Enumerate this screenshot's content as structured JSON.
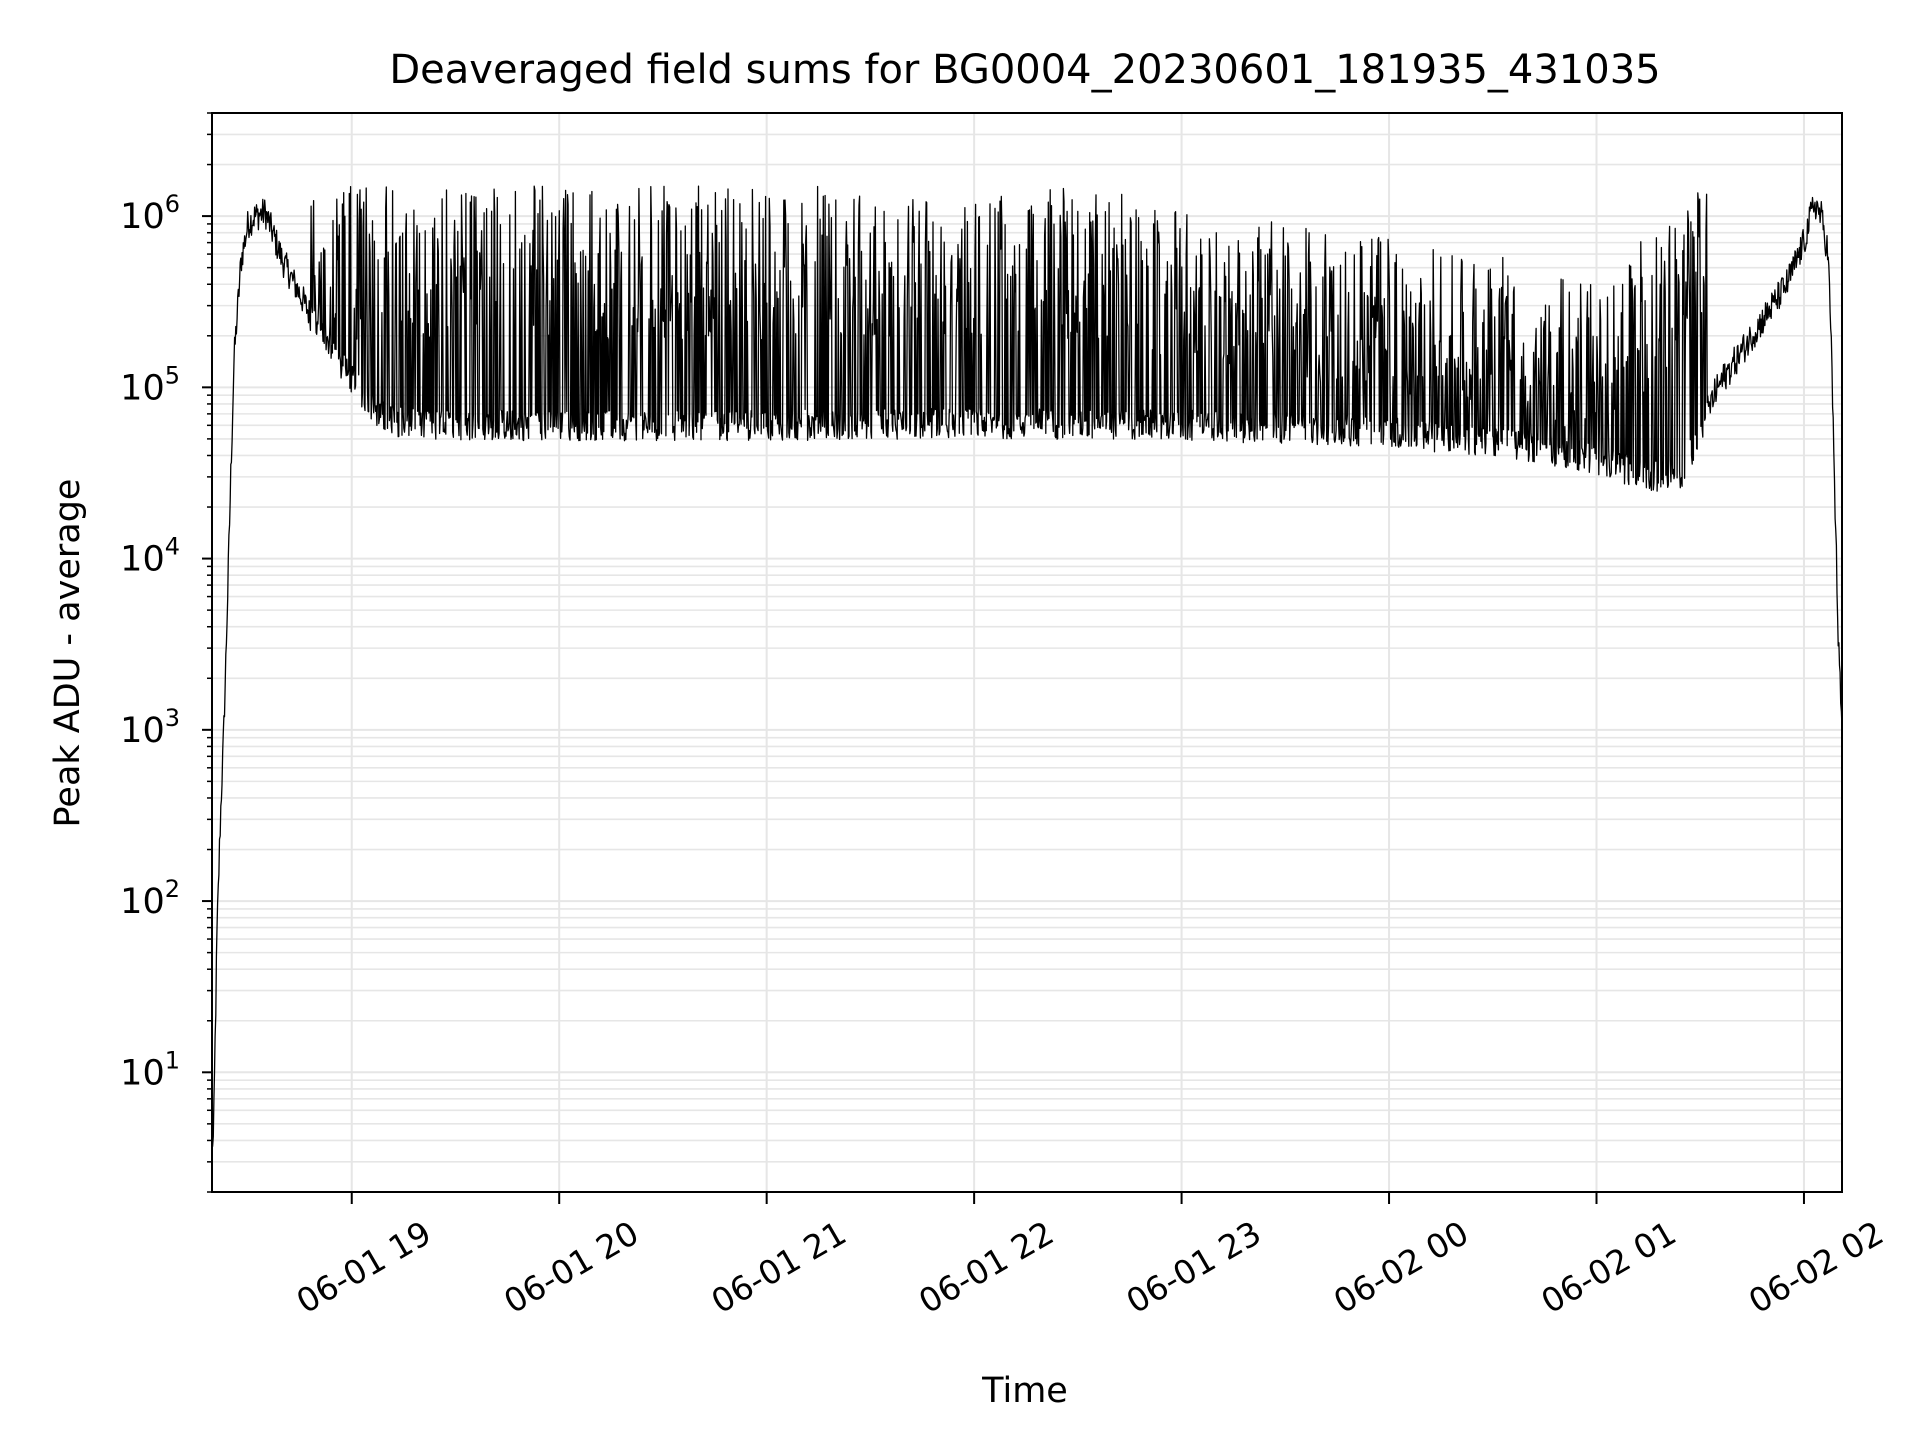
{
  "chart_data": {
    "type": "line",
    "title": "Deaveraged field sums for BG0004_20230601_181935_431035",
    "xlabel": "Time",
    "ylabel": "Peak ADU - average",
    "yscale": "log",
    "ylim": [
      2,
      4000000
    ],
    "xlim": [
      "2023-06-01 18:19:35",
      "2023-06-02 02:11:00"
    ],
    "grid": true,
    "line_color": "#000000",
    "grid_color": "#e6e6e6",
    "x_ticks": [
      {
        "t": "2023-06-01 19:00",
        "label": "06-01 19"
      },
      {
        "t": "2023-06-01 20:00",
        "label": "06-01 20"
      },
      {
        "t": "2023-06-01 21:00",
        "label": "06-01 21"
      },
      {
        "t": "2023-06-01 22:00",
        "label": "06-01 22"
      },
      {
        "t": "2023-06-01 23:00",
        "label": "06-01 23"
      },
      {
        "t": "2023-06-02 00:00",
        "label": "06-02 00"
      },
      {
        "t": "2023-06-02 01:00",
        "label": "06-02 01"
      },
      {
        "t": "2023-06-02 02:00",
        "label": "06-02 02"
      }
    ],
    "y_ticks": [
      {
        "v": 10,
        "base": "10",
        "exp": "1"
      },
      {
        "v": 100,
        "base": "10",
        "exp": "2"
      },
      {
        "v": 1000,
        "base": "10",
        "exp": "3"
      },
      {
        "v": 10000,
        "base": "10",
        "exp": "4"
      },
      {
        "v": 100000,
        "base": "10",
        "exp": "5"
      },
      {
        "v": 1000000,
        "base": "10",
        "exp": "6"
      }
    ],
    "series": [
      {
        "envelope": {
          "time": [
            "2023-06-01 18:19:35",
            "2023-06-01 18:20:00",
            "2023-06-01 18:21:00",
            "2023-06-01 18:22:00",
            "2023-06-01 18:23:00",
            "2023-06-01 18:24:00",
            "2023-06-01 18:25:00",
            "2023-06-01 18:26:00",
            "2023-06-01 18:28:00",
            "2023-06-01 18:30:00",
            "2023-06-01 18:32:00",
            "2023-06-01 18:35:00",
            "2023-06-01 18:40:00",
            "2023-06-01 18:45:00",
            "2023-06-01 18:50:00",
            "2023-06-01 18:55:00",
            "2023-06-01 19:00:00",
            "2023-06-01 19:05:00",
            "2023-06-01 19:10:00",
            "2023-06-01 19:20:00",
            "2023-06-01 20:00:00",
            "2023-06-01 21:00:00",
            "2023-06-01 22:00:00",
            "2023-06-01 23:00:00",
            "2023-06-02 00:00:00",
            "2023-06-02 00:40:00",
            "2023-06-02 01:00:00",
            "2023-06-02 01:15:00",
            "2023-06-02 01:25:00",
            "2023-06-02 01:35:00",
            "2023-06-02 01:45:00",
            "2023-06-02 01:55:00",
            "2023-06-02 02:00:00",
            "2023-06-02 02:03:00",
            "2023-06-02 02:05:00",
            "2023-06-02 02:07:00",
            "2023-06-02 02:08:00",
            "2023-06-02 02:09:00",
            "2023-06-02 02:10:00",
            "2023-06-02 02:11:00"
          ],
          "low": [
            4,
            4,
            60,
            300,
            1000,
            5000,
            30000,
            150000,
            550000,
            900000,
            1000000,
            1050000,
            550000,
            350000,
            220000,
            150000,
            110000,
            80000,
            65000,
            60000,
            60000,
            60000,
            62000,
            60000,
            55000,
            45000,
            38000,
            30000,
            32000,
            100000,
            200000,
            400000,
            700000,
            1200000,
            1000000,
            600000,
            150000,
            20000,
            3000,
            1000
          ],
          "high": [
            4,
            4,
            60,
            300,
            1000,
            5000,
            30000,
            150000,
            550000,
            900000,
            1000000,
            1050000,
            550000,
            350000,
            220000,
            150000,
            110000,
            80000,
            65000,
            60000,
            60000,
            60000,
            62000,
            60000,
            55000,
            45000,
            38000,
            30000,
            32000,
            100000,
            200000,
            400000,
            700000,
            1200000,
            1000000,
            600000,
            150000,
            20000,
            3000,
            1000
          ],
          "burst_windows": [
            [
              "2023-06-01 18:48:00",
              "2023-06-02 01:32:00"
            ]
          ],
          "burst_high": [
            [
              "2023-06-01 18:48:00",
              1500000
            ],
            [
              "2023-06-01 22:30:00",
              1500000
            ],
            [
              "2023-06-01 23:30:00",
              900000
            ],
            [
              "2023-06-02 00:30:00",
              600000
            ],
            [
              "2023-06-02 01:00:00",
              400000
            ],
            [
              "2023-06-02 01:32:00",
              1700000
            ]
          ]
        }
      }
    ]
  }
}
